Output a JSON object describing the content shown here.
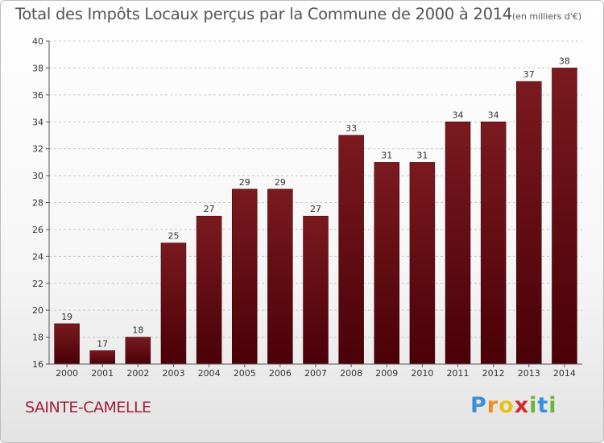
{
  "chart_data": {
    "type": "bar",
    "title": "Total des Impôts Locaux perçus par la Commune de 2000 à 2014",
    "unit": "(en milliers d'€)",
    "categories": [
      "2000",
      "2001",
      "2002",
      "2003",
      "2004",
      "2005",
      "2006",
      "2007",
      "2008",
      "2009",
      "2010",
      "2011",
      "2012",
      "2013",
      "2014"
    ],
    "values": [
      19,
      17,
      18,
      25,
      27,
      29,
      29,
      27,
      33,
      31,
      31,
      34,
      34,
      37,
      38
    ],
    "ylim": [
      16,
      40
    ],
    "yticks": [
      16,
      18,
      20,
      22,
      24,
      26,
      28,
      30,
      32,
      34,
      36,
      38,
      40
    ],
    "xlabel": "",
    "ylabel": "",
    "grid": "horizontal-dashed",
    "bar_color": "#7a1a1f",
    "bar_color_dark": "#4a0008"
  },
  "commune": {
    "name": "SAINTE-CAMELLE",
    "color": "#a0223a"
  },
  "logo": {
    "letters": [
      "P",
      "r",
      "o",
      "x",
      "i",
      "t",
      "i"
    ],
    "colors": [
      "#3a8fd8",
      "#f28c1c",
      "#e8c21a",
      "#d8262a",
      "#6bb33a",
      "#3a8fd8",
      "#6bb33a"
    ]
  }
}
